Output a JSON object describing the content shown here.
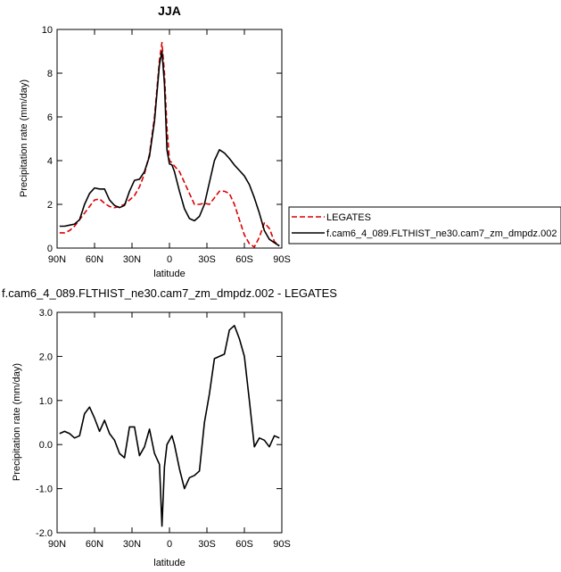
{
  "chart_data": [
    {
      "type": "line",
      "title": "JJA",
      "xlabel": "latitude",
      "ylabel": "Precipitation rate (mm/day)",
      "xlim": [
        90,
        -90
      ],
      "ylim": [
        0,
        10
      ],
      "x_ticks": [
        90,
        60,
        30,
        0,
        -30,
        -60,
        -90
      ],
      "x_tick_labels": [
        "90N",
        "60N",
        "30N",
        "0",
        "30S",
        "60S",
        "90S"
      ],
      "y_ticks": [
        0,
        2,
        4,
        6,
        8,
        10
      ],
      "y_tick_labels": [
        "0",
        "2",
        "4",
        "6",
        "8",
        "10"
      ],
      "legend_position": "right",
      "series": [
        {
          "name": "LEGATES",
          "color": "#dd0000",
          "dash": "dashed",
          "x": [
            88,
            84,
            80,
            76,
            72,
            68,
            64,
            60,
            56,
            52,
            48,
            44,
            40,
            36,
            32,
            28,
            24,
            20,
            16,
            12,
            8,
            6,
            4,
            2,
            0,
            -2,
            -4,
            -8,
            -12,
            -16,
            -20,
            -24,
            -28,
            -32,
            -36,
            -40,
            -44,
            -48,
            -52,
            -56,
            -60,
            -64,
            -68,
            -72,
            -76,
            -80,
            -84,
            -88
          ],
          "values": [
            0.7,
            0.7,
            0.8,
            1.0,
            1.3,
            1.6,
            1.9,
            2.2,
            2.25,
            2.05,
            1.9,
            1.85,
            1.9,
            2.0,
            2.2,
            2.4,
            2.8,
            3.4,
            4.3,
            6.0,
            8.6,
            9.4,
            8.0,
            5.5,
            4.0,
            3.9,
            3.75,
            3.5,
            3.0,
            2.5,
            2.0,
            2.0,
            2.05,
            2.0,
            2.3,
            2.6,
            2.6,
            2.5,
            2.0,
            1.3,
            0.6,
            0.2,
            0.05,
            0.5,
            1.15,
            0.9,
            0.3,
            0.1
          ]
        },
        {
          "name": "f.cam6_4_089.FLTHIST_ne30.cam7_zm_dmpdz.002",
          "color": "#000000",
          "dash": "solid",
          "x": [
            88,
            84,
            80,
            76,
            72,
            68,
            64,
            60,
            56,
            52,
            48,
            44,
            40,
            36,
            32,
            28,
            24,
            20,
            16,
            12,
            8,
            6,
            4,
            2,
            0,
            -2,
            -4,
            -8,
            -12,
            -16,
            -20,
            -24,
            -28,
            -32,
            -36,
            -40,
            -44,
            -48,
            -52,
            -56,
            -60,
            -64,
            -68,
            -72,
            -76,
            -80,
            -84,
            -88
          ],
          "values": [
            1.0,
            1.0,
            1.05,
            1.1,
            1.3,
            2.0,
            2.5,
            2.75,
            2.7,
            2.7,
            2.2,
            1.95,
            1.85,
            1.95,
            2.6,
            3.1,
            3.15,
            3.5,
            4.2,
            5.8,
            8.4,
            9.0,
            7.5,
            4.5,
            3.85,
            3.8,
            3.5,
            2.6,
            1.8,
            1.35,
            1.25,
            1.45,
            2.0,
            3.0,
            4.0,
            4.5,
            4.35,
            4.1,
            3.8,
            3.55,
            3.3,
            2.9,
            2.3,
            1.6,
            0.8,
            0.4,
            0.25,
            0.1
          ]
        }
      ]
    },
    {
      "type": "line",
      "title": "f.cam6_4_089.FLTHIST_ne30.cam7_zm_dmpdz.002 - LEGATES",
      "xlabel": "latitude",
      "ylabel": "Precipitation rate (mm/day)",
      "xlim": [
        90,
        -90
      ],
      "ylim": [
        -2.0,
        3.0
      ],
      "x_ticks": [
        90,
        60,
        30,
        0,
        -30,
        -60,
        -90
      ],
      "x_tick_labels": [
        "90N",
        "60N",
        "30N",
        "0",
        "30S",
        "60S",
        "90S"
      ],
      "y_ticks": [
        -2,
        -1,
        0,
        1,
        2,
        3
      ],
      "y_tick_labels": [
        "-2.0",
        "-1.0",
        "0.0",
        "1.0",
        "2.0",
        "3.0"
      ],
      "series": [
        {
          "color": "#000000",
          "dash": "solid",
          "x": [
            88,
            84,
            80,
            76,
            72,
            68,
            64,
            60,
            56,
            52,
            48,
            44,
            40,
            36,
            32,
            28,
            24,
            20,
            16,
            12,
            8,
            6,
            4,
            2,
            -2,
            -4,
            -8,
            -12,
            -16,
            -20,
            -24,
            -28,
            -32,
            -36,
            -40,
            -44,
            -48,
            -52,
            -56,
            -60,
            -64,
            -68,
            -72,
            -76,
            -80,
            -84,
            -88
          ],
          "values": [
            0.25,
            0.3,
            0.25,
            0.15,
            0.2,
            0.7,
            0.85,
            0.6,
            0.3,
            0.55,
            0.25,
            0.1,
            -0.2,
            -0.3,
            0.4,
            0.4,
            -0.25,
            -0.05,
            0.35,
            -0.2,
            -0.45,
            -1.85,
            -0.5,
            0.0,
            0.2,
            0.0,
            -0.55,
            -1.0,
            -0.75,
            -0.7,
            -0.6,
            0.5,
            1.15,
            1.95,
            2.0,
            2.05,
            2.6,
            2.7,
            2.4,
            2.0,
            1.0,
            -0.05,
            0.15,
            0.1,
            -0.05,
            0.2,
            0.15
          ]
        }
      ]
    }
  ]
}
